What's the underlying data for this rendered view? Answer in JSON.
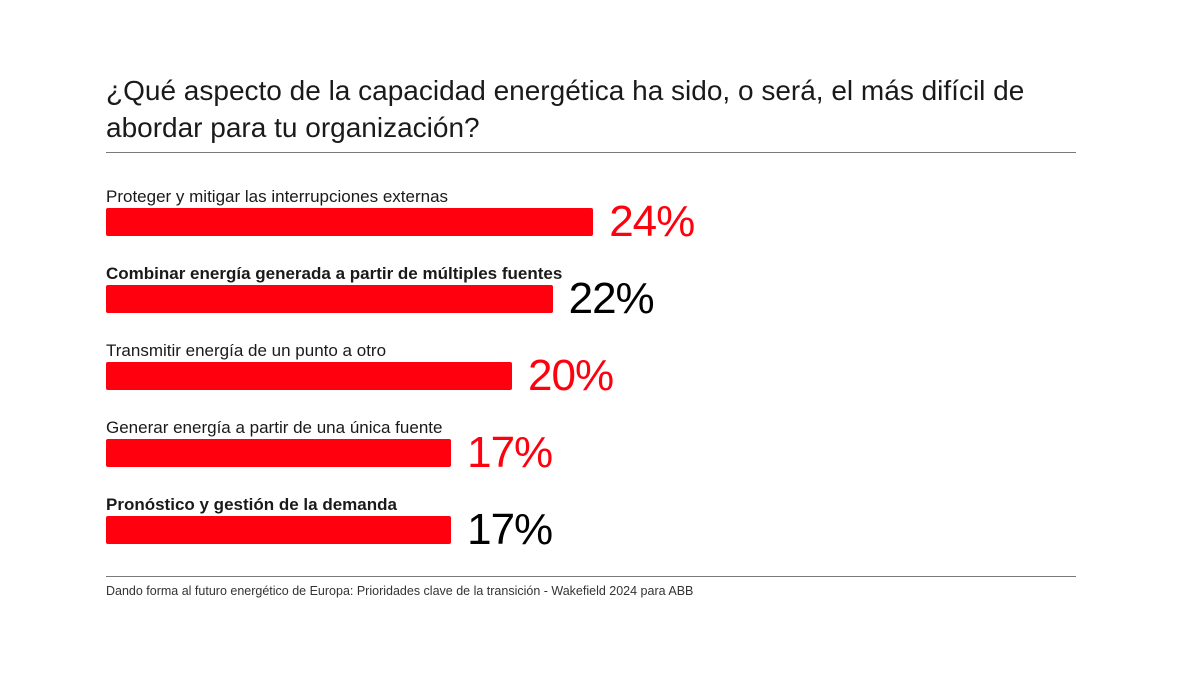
{
  "title": "¿Qué aspecto de la capacidad energética ha sido, o será, el más difícil de abordar para tu organización?",
  "source": "Dando forma al futuro energético de Europa: Prioridades clave de la transición - Wakefield 2024 para ABB",
  "colors": {
    "bar": "#ff000f",
    "accent_red": "#ff000f",
    "text": "#1a1a1a"
  },
  "chart_data": {
    "type": "bar",
    "orientation": "horizontal",
    "title": "¿Qué aspecto de la capacidad energética ha sido, o será, el más difícil de abordar para tu organización?",
    "categories": [
      "Proteger y mitigar las interrupciones externas",
      "Combinar energía generada a partir de múltiples fuentes",
      "Transmitir energía de un punto a otro",
      "Generar energía a partir de una única fuente",
      "Pronóstico y gestión de la demanda"
    ],
    "values": [
      24,
      22,
      20,
      17,
      17
    ],
    "value_labels": [
      "24%",
      "22%",
      "20%",
      "17%",
      "17%"
    ],
    "label_bold": [
      false,
      true,
      false,
      false,
      true
    ],
    "value_label_colors": [
      "#ff000f",
      "#000000",
      "#ff000f",
      "#ff000f",
      "#000000"
    ],
    "xlabel": "",
    "ylabel": "",
    "grid": false,
    "legend": "none"
  }
}
